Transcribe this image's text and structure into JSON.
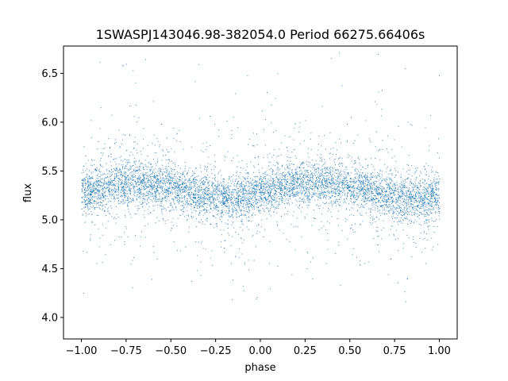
{
  "chart_data": {
    "type": "scatter",
    "title": "1SWASPJ143046.98-382054.0 Period 66275.66406s",
    "xlabel": "phase",
    "ylabel": "flux",
    "xlim": [
      -1.1,
      1.1
    ],
    "ylim": [
      3.78,
      6.78
    ],
    "xticks": [
      -1.0,
      -0.75,
      -0.5,
      -0.25,
      0.0,
      0.25,
      0.5,
      0.75,
      1.0
    ],
    "xtick_labels": [
      "−1.00",
      "−0.75",
      "−0.50",
      "−0.25",
      "0.00",
      "0.25",
      "0.50",
      "0.75",
      "1.00"
    ],
    "yticks": [
      4.0,
      4.5,
      5.0,
      5.5,
      6.0,
      6.5
    ],
    "ytick_labels": [
      "4.0",
      "4.5",
      "5.0",
      "5.5",
      "6.0",
      "6.5"
    ],
    "grid": false,
    "point_color": "#1f77b4",
    "series": [
      {
        "x": [
          -1.0,
          -0.9,
          -0.8,
          -0.75,
          -0.7,
          -0.6,
          -0.5,
          -0.4,
          -0.3,
          -0.25,
          -0.2,
          -0.1,
          0.0,
          0.1,
          0.2,
          0.25,
          0.3,
          0.4,
          0.5,
          0.6,
          0.7,
          0.75,
          0.8,
          0.9,
          1.0
        ],
        "y": [
          5.28,
          5.33,
          5.37,
          5.38,
          5.39,
          5.37,
          5.33,
          5.29,
          5.25,
          5.23,
          5.22,
          5.23,
          5.27,
          5.33,
          5.37,
          5.38,
          5.39,
          5.37,
          5.33,
          5.29,
          5.25,
          5.23,
          5.22,
          5.23,
          5.27
        ]
      }
    ]
  }
}
